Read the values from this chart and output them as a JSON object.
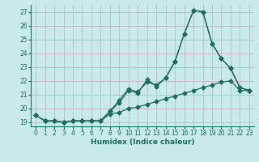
{
  "xlabel": "Humidex (Indice chaleur)",
  "x": [
    0,
    1,
    2,
    3,
    4,
    5,
    6,
    7,
    8,
    9,
    10,
    11,
    12,
    13,
    14,
    15,
    16,
    17,
    18,
    19,
    20,
    21,
    22,
    23
  ],
  "line1": [
    19.5,
    19.1,
    19.1,
    19.0,
    19.1,
    19.1,
    19.1,
    19.1,
    19.6,
    19.7,
    20.0,
    20.1,
    20.3,
    20.5,
    20.7,
    20.9,
    21.1,
    21.3,
    21.5,
    21.7,
    21.9,
    22.0,
    21.3,
    21.3
  ],
  "line2": [
    19.5,
    19.1,
    19.1,
    19.0,
    19.1,
    19.1,
    19.1,
    19.1,
    19.8,
    20.4,
    21.3,
    21.1,
    22.1,
    21.6,
    22.2,
    23.4,
    25.4,
    27.1,
    27.0,
    24.7,
    23.6,
    22.9,
    21.5,
    21.3
  ],
  "line3": [
    19.5,
    19.1,
    19.1,
    19.0,
    19.1,
    19.1,
    19.1,
    19.1,
    19.8,
    20.6,
    21.4,
    21.2,
    21.9,
    21.7,
    22.2,
    23.4,
    25.4,
    27.1,
    27.0,
    24.7,
    23.6,
    22.9,
    21.5,
    21.3
  ],
  "ylim": [
    18.7,
    27.5
  ],
  "xlim": [
    -0.5,
    23.5
  ],
  "yticks": [
    19,
    20,
    21,
    22,
    23,
    24,
    25,
    26,
    27
  ],
  "xticks": [
    0,
    1,
    2,
    3,
    4,
    5,
    6,
    7,
    8,
    9,
    10,
    11,
    12,
    13,
    14,
    15,
    16,
    17,
    18,
    19,
    20,
    21,
    22,
    23
  ],
  "line_color": "#1a6b5a",
  "bg_color": "#c8eaea",
  "grid_color": "#c0b8c8",
  "marker": "D",
  "markersize": 2.5,
  "linewidth": 0.9
}
